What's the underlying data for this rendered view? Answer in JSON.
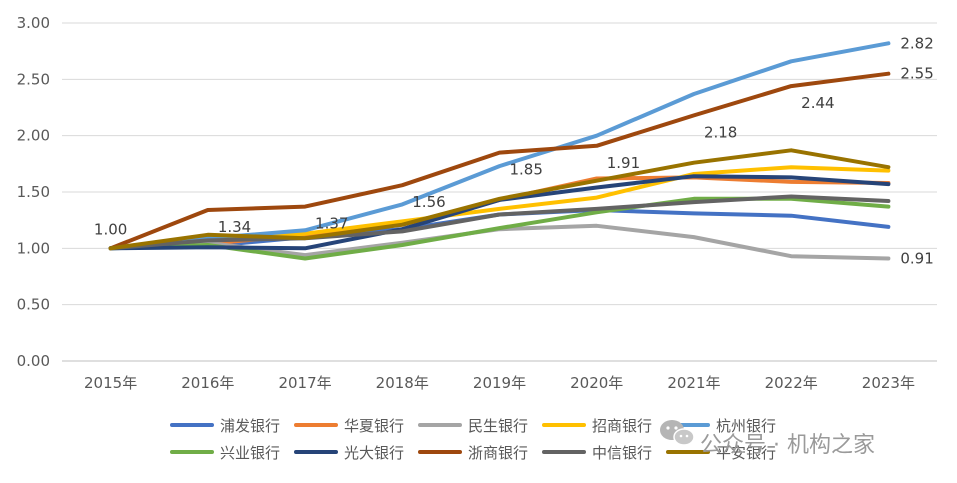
{
  "chart_data": {
    "type": "line",
    "title": "",
    "xlabel": "",
    "ylabel": "",
    "categories": [
      "2015年",
      "2016年",
      "2017年",
      "2018年",
      "2019年",
      "2020年",
      "2021年",
      "2022年",
      "2023年"
    ],
    "ylim": [
      0,
      3
    ],
    "yticks": [
      "0.00",
      "0.50",
      "1.00",
      "1.50",
      "2.00",
      "2.50",
      "3.00"
    ],
    "grid": "horizontal",
    "legend_position": "bottom",
    "series": [
      {
        "name": "浦发银行",
        "color": "#4472C4",
        "values": [
          1.0,
          1.02,
          1.1,
          1.17,
          1.3,
          1.34,
          1.31,
          1.29,
          1.19
        ]
      },
      {
        "name": "华夏银行",
        "color": "#ED7D31",
        "values": [
          1.0,
          1.04,
          1.12,
          1.21,
          1.43,
          1.62,
          1.63,
          1.59,
          1.58
        ]
      },
      {
        "name": "民生银行",
        "color": "#A5A5A5",
        "values": [
          1.0,
          1.05,
          0.94,
          1.05,
          1.17,
          1.2,
          1.1,
          0.93,
          0.91
        ]
      },
      {
        "name": "招商银行",
        "color": "#FFC000",
        "values": [
          1.0,
          1.08,
          1.13,
          1.24,
          1.35,
          1.45,
          1.66,
          1.72,
          1.69
        ]
      },
      {
        "name": "杭州银行",
        "color": "#5B9BD5",
        "values": [
          1.0,
          1.09,
          1.16,
          1.39,
          1.73,
          2.0,
          2.37,
          2.66,
          2.82
        ]
      },
      {
        "name": "兴业银行",
        "color": "#70AD47",
        "values": [
          1.0,
          1.03,
          0.91,
          1.03,
          1.18,
          1.32,
          1.44,
          1.44,
          1.37
        ]
      },
      {
        "name": "光大银行",
        "color": "#264478",
        "values": [
          1.0,
          1.01,
          1.0,
          1.17,
          1.43,
          1.54,
          1.64,
          1.63,
          1.57
        ]
      },
      {
        "name": "浙商银行",
        "color": "#9E480E",
        "values": [
          1.0,
          1.34,
          1.37,
          1.56,
          1.85,
          1.91,
          2.18,
          2.44,
          2.55
        ]
      },
      {
        "name": "中信银行",
        "color": "#636363",
        "values": [
          1.0,
          1.07,
          1.09,
          1.15,
          1.3,
          1.35,
          1.41,
          1.46,
          1.42
        ]
      },
      {
        "name": "平安银行",
        "color": "#997300",
        "values": [
          1.0,
          1.12,
          1.09,
          1.21,
          1.44,
          1.6,
          1.76,
          1.87,
          1.72
        ]
      }
    ],
    "annotations": [
      {
        "series": "浙商银行",
        "category": "2015年",
        "text": "1.00"
      },
      {
        "series": "浙商银行",
        "category": "2016年",
        "text": "1.34"
      },
      {
        "series": "浙商银行",
        "category": "2017年",
        "text": "1.37"
      },
      {
        "series": "浙商银行",
        "category": "2018年",
        "text": "1.56"
      },
      {
        "series": "浙商银行",
        "category": "2019年",
        "text": "1.85"
      },
      {
        "series": "浙商银行",
        "category": "2020年",
        "text": "1.91"
      },
      {
        "series": "浙商银行",
        "category": "2021年",
        "text": "2.18"
      },
      {
        "series": "浙商银行",
        "category": "2022年",
        "text": "2.44"
      },
      {
        "series": "浙商银行",
        "category": "2023年",
        "text": "2.55"
      },
      {
        "series": "杭州银行",
        "category": "2023年",
        "text": "2.82"
      },
      {
        "series": "民生银行",
        "category": "2023年",
        "text": "0.91"
      }
    ]
  },
  "watermark": {
    "text": "公众号 · 机构之家",
    "icon": "wechat-icon"
  }
}
